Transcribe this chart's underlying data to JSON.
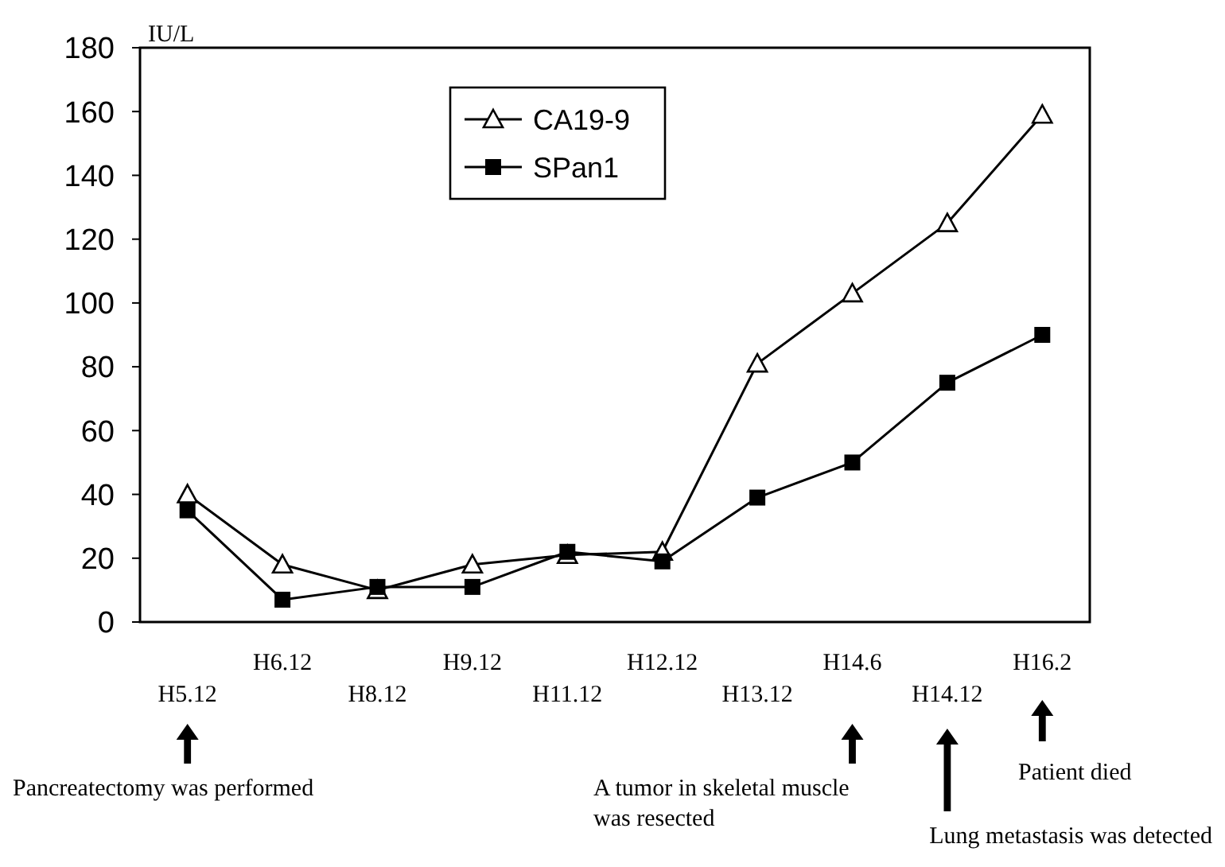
{
  "chart_data": {
    "type": "line",
    "ylabel": "IU/L",
    "categories": [
      "H5.12",
      "H6.12",
      "H8.12",
      "H9.12",
      "H11.12",
      "H12.12",
      "H13.12",
      "H14.6",
      "H14.12",
      "H16.2"
    ],
    "series": [
      {
        "name": "CA19-9",
        "color": "#000000",
        "marker": "triangle",
        "values": [
          40,
          18,
          10,
          18,
          21,
          22,
          81,
          103,
          125,
          159
        ]
      },
      {
        "name": "SPan1",
        "color": "#000000",
        "marker": "square",
        "values": [
          35,
          7,
          11,
          11,
          22,
          19,
          39,
          50,
          75,
          90
        ]
      }
    ],
    "ylim": [
      0,
      180
    ],
    "yticks": [
      0,
      20,
      40,
      60,
      80,
      100,
      120,
      140,
      160,
      180
    ],
    "grid": false,
    "legend": "top",
    "annotations": [
      "Pancreatectomy was performed",
      "A tumor in skeletal muscle was resected",
      "Lung metastasis was detected",
      "Patient died"
    ]
  }
}
